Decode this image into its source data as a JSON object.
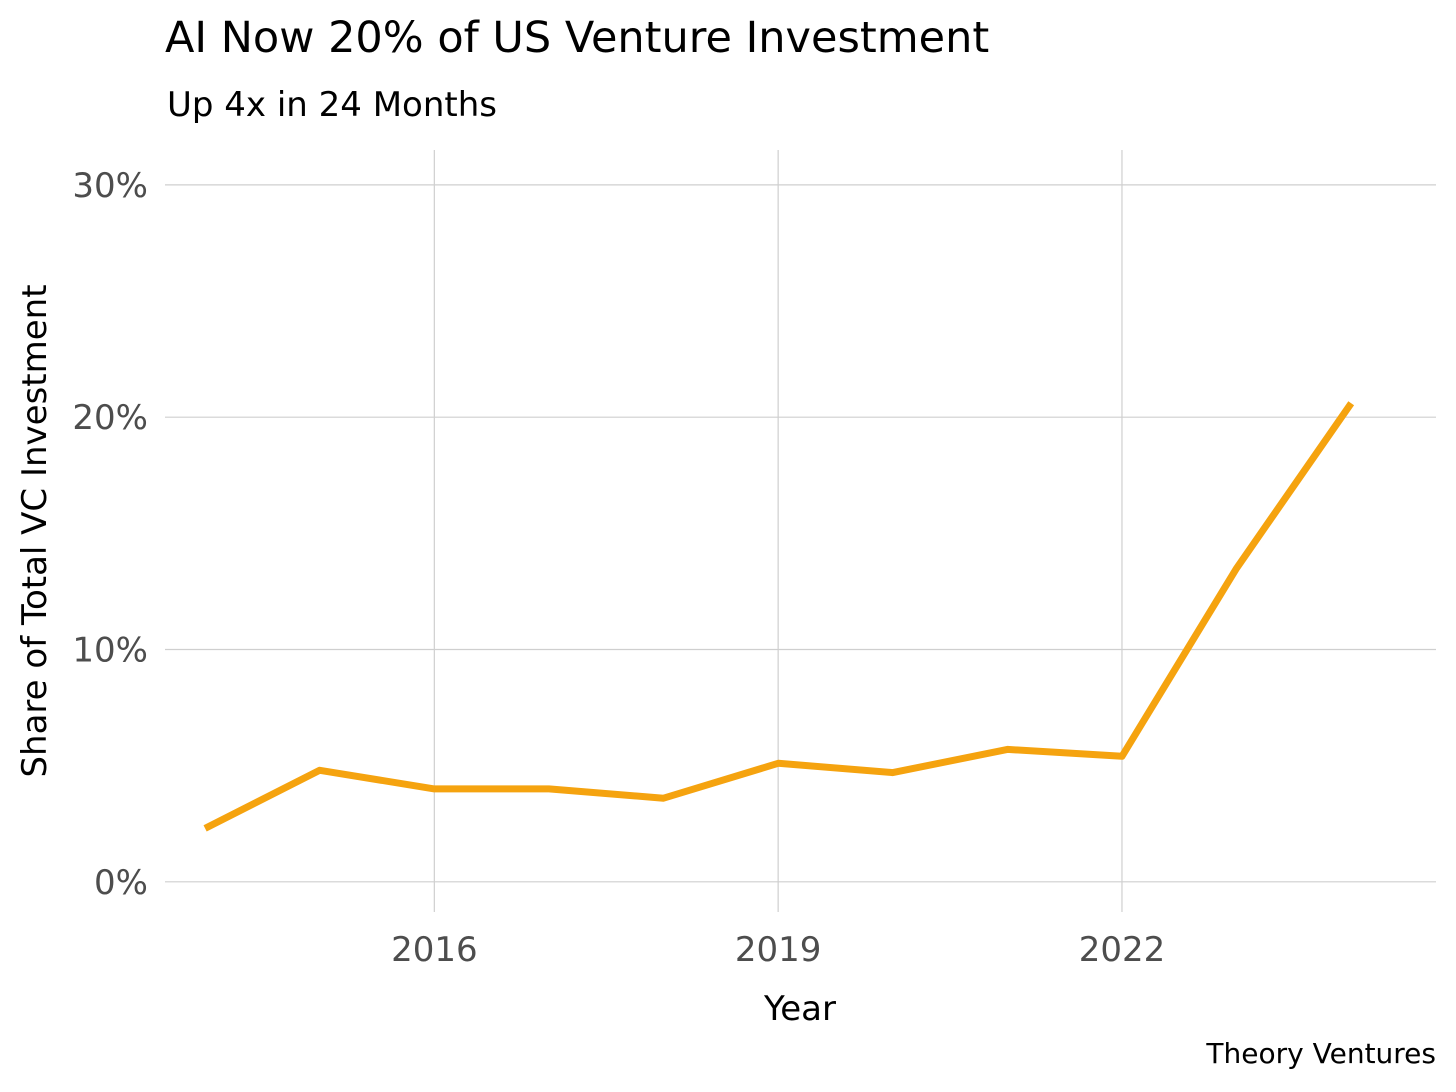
{
  "chart_data": {
    "type": "line",
    "title": "AI Now 20% of US Venture Investment",
    "subtitle": "Up 4x in 24 Months",
    "xlabel": "Year",
    "ylabel": "Share of Total VC Investment",
    "caption": "Theory Ventures",
    "x_ticks": [
      {
        "value": 2016,
        "label": "2016"
      },
      {
        "value": 2019,
        "label": "2019"
      },
      {
        "value": 2022,
        "label": "2022"
      }
    ],
    "y_ticks": [
      {
        "value": 0,
        "label": "0%"
      },
      {
        "value": 10,
        "label": "10%"
      },
      {
        "value": 20,
        "label": "20%"
      },
      {
        "value": 30,
        "label": "30%"
      }
    ],
    "xlim": [
      2013.65,
      2024.74
    ],
    "ylim": [
      -1.3,
      31.5
    ],
    "grid": true,
    "series": [
      {
        "color": "#f5a30f",
        "x": [
          2014.0,
          2015.0,
          2016.0,
          2017.0,
          2018.0,
          2019.0,
          2020.0,
          2021.0,
          2022.0,
          2023.0,
          2024.0
        ],
        "y": [
          2.3,
          4.8,
          4.0,
          4.0,
          3.6,
          5.1,
          4.7,
          5.7,
          5.4,
          13.5,
          20.6
        ]
      }
    ]
  }
}
